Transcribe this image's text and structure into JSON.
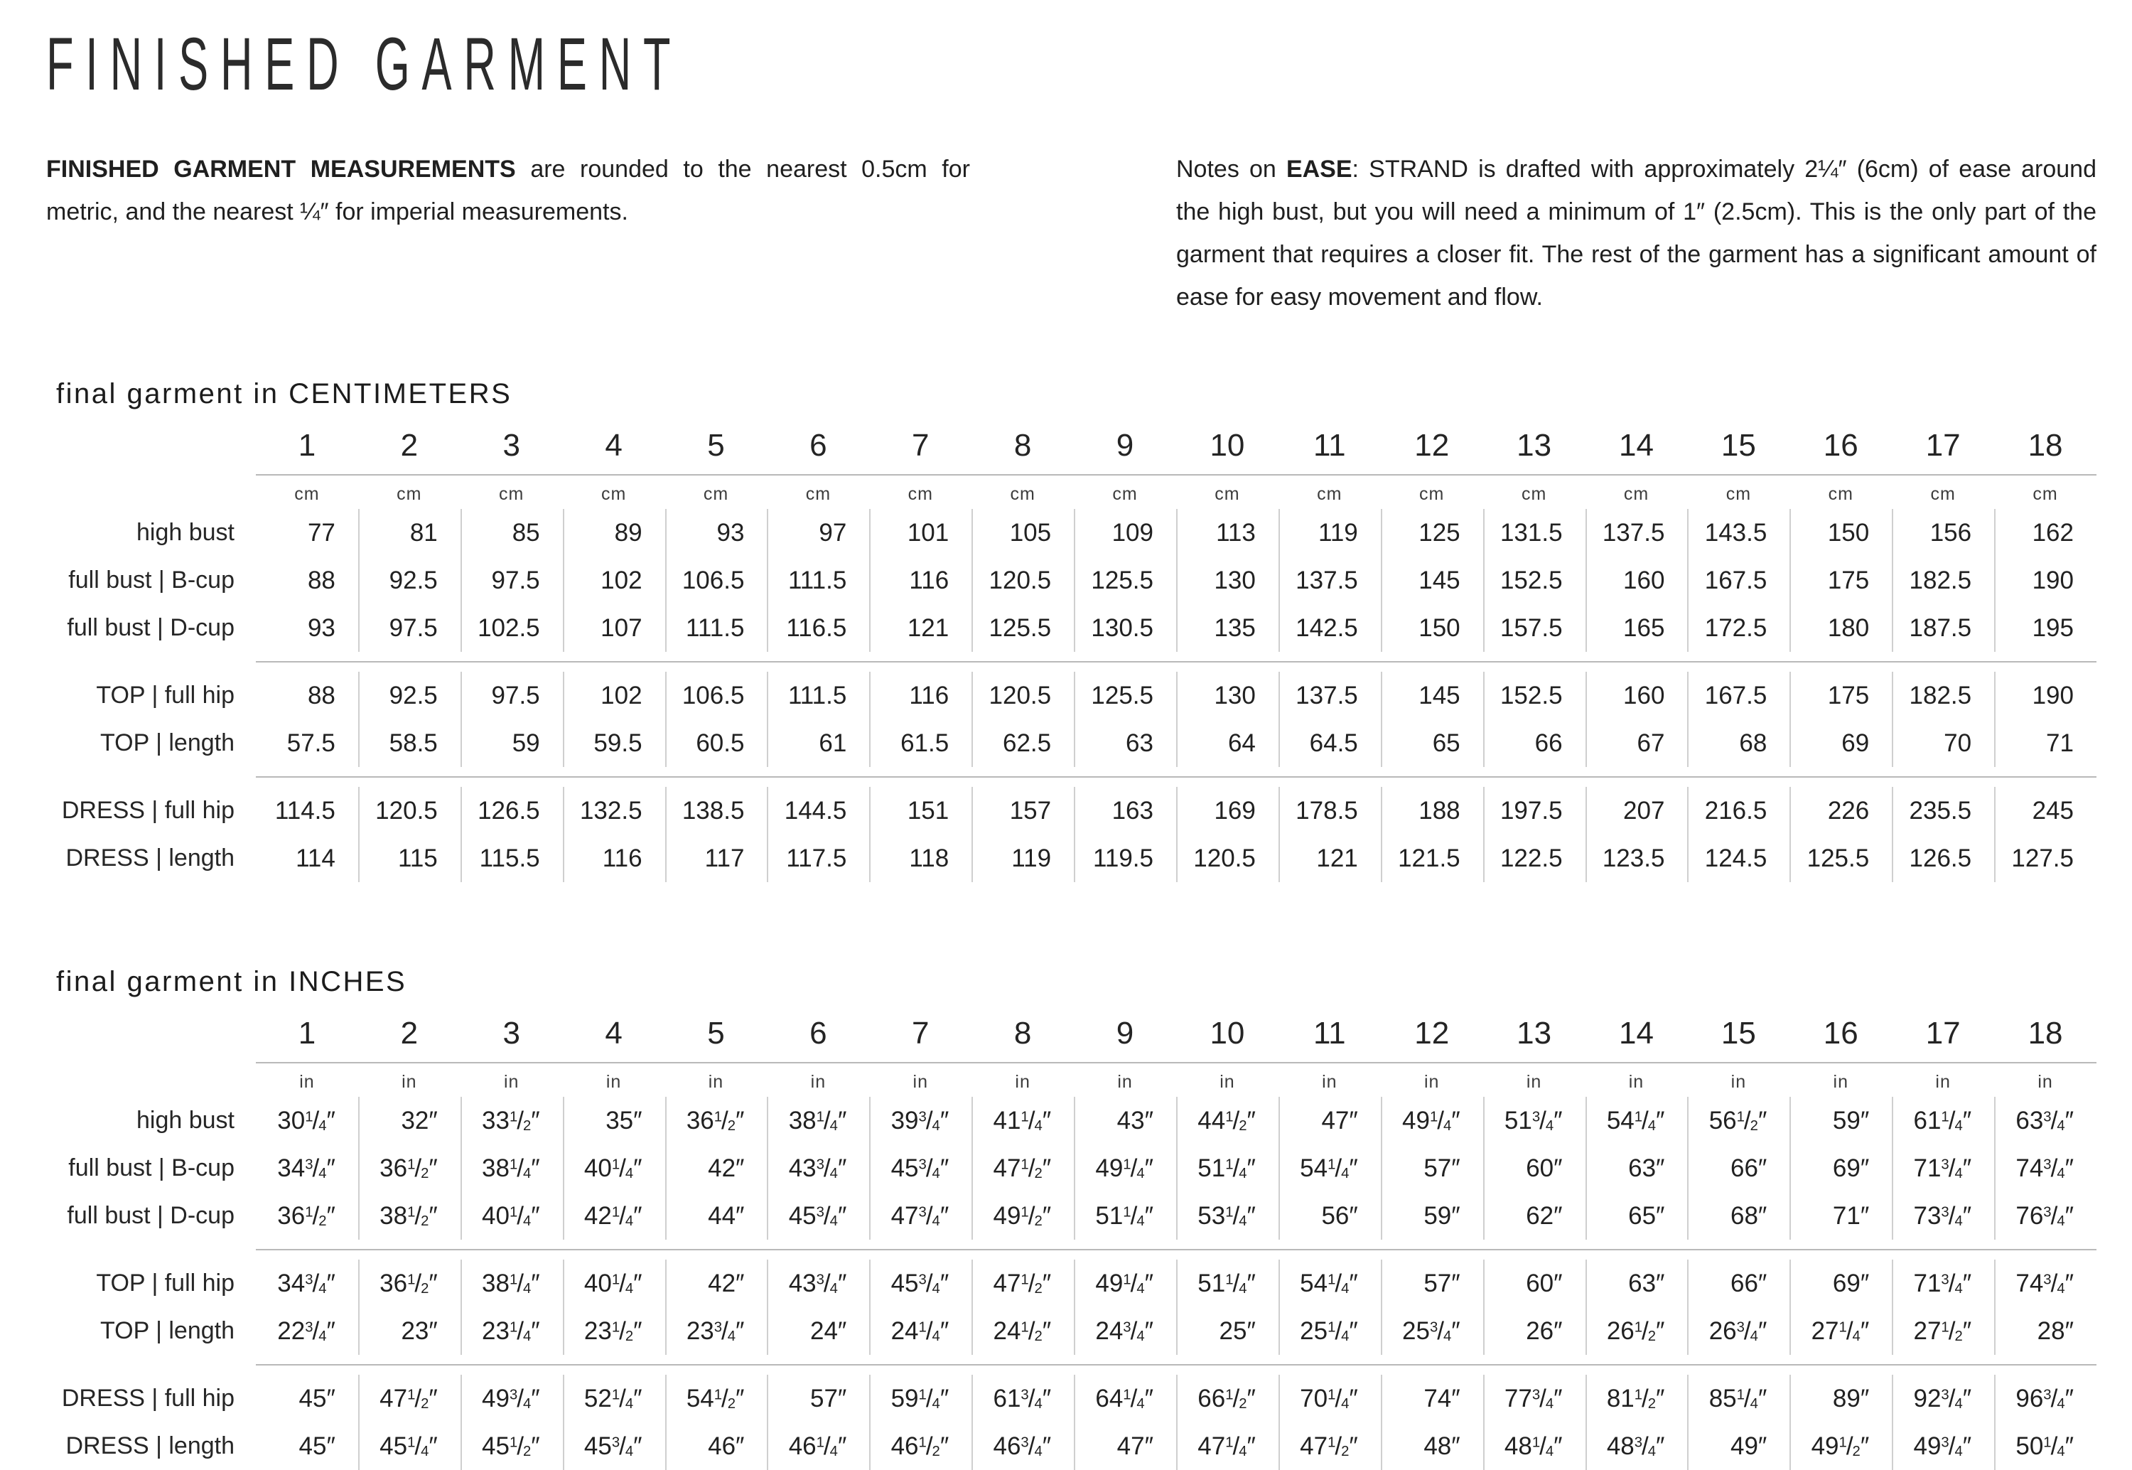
{
  "page": {
    "title": "FINISHED GARMENT",
    "intro_left": {
      "bold": "FINISHED GARMENT MEASUREMENTS",
      "rest": " are rounded to the nearest 0.5cm for metric, and the nearest ¼″ for imperial measurements."
    },
    "intro_right": {
      "prefix": "Notes on ",
      "bold": "EASE",
      "rest": ": STRAND is drafted with approximately 2¼″ (6cm) of ease around the high bust, but you will need a minimum of 1″ (2.5cm). This is the only part of the garment that requires a closer fit. The rest of the garment has a significant amount of ease for easy movement and flow."
    }
  },
  "sizes": [
    "1",
    "2",
    "3",
    "4",
    "5",
    "6",
    "7",
    "8",
    "9",
    "10",
    "11",
    "12",
    "13",
    "14",
    "15",
    "16",
    "17",
    "18"
  ],
  "tables": [
    {
      "id": "cm",
      "section_title": "final garment in CENTIMETERS",
      "unit": "cm",
      "groups": [
        {
          "rows": [
            {
              "label": "high bust",
              "values": [
                "77",
                "81",
                "85",
                "89",
                "93",
                "97",
                "101",
                "105",
                "109",
                "113",
                "119",
                "125",
                "131.5",
                "137.5",
                "143.5",
                "150",
                "156",
                "162"
              ]
            },
            {
              "label": "full bust | B-cup",
              "values": [
                "88",
                "92.5",
                "97.5",
                "102",
                "106.5",
                "111.5",
                "116",
                "120.5",
                "125.5",
                "130",
                "137.5",
                "145",
                "152.5",
                "160",
                "167.5",
                "175",
                "182.5",
                "190"
              ]
            },
            {
              "label": "full bust | D-cup",
              "values": [
                "93",
                "97.5",
                "102.5",
                "107",
                "111.5",
                "116.5",
                "121",
                "125.5",
                "130.5",
                "135",
                "142.5",
                "150",
                "157.5",
                "165",
                "172.5",
                "180",
                "187.5",
                "195"
              ]
            }
          ]
        },
        {
          "rows": [
            {
              "label": "TOP | full hip",
              "values": [
                "88",
                "92.5",
                "97.5",
                "102",
                "106.5",
                "111.5",
                "116",
                "120.5",
                "125.5",
                "130",
                "137.5",
                "145",
                "152.5",
                "160",
                "167.5",
                "175",
                "182.5",
                "190"
              ]
            },
            {
              "label": "TOP | length",
              "values": [
                "57.5",
                "58.5",
                "59",
                "59.5",
                "60.5",
                "61",
                "61.5",
                "62.5",
                "63",
                "64",
                "64.5",
                "65",
                "66",
                "67",
                "68",
                "69",
                "70",
                "71"
              ]
            }
          ]
        },
        {
          "rows": [
            {
              "label": "DRESS | full hip",
              "values": [
                "114.5",
                "120.5",
                "126.5",
                "132.5",
                "138.5",
                "144.5",
                "151",
                "157",
                "163",
                "169",
                "178.5",
                "188",
                "197.5",
                "207",
                "216.5",
                "226",
                "235.5",
                "245"
              ]
            },
            {
              "label": "DRESS | length",
              "values": [
                "114",
                "115",
                "115.5",
                "116",
                "117",
                "117.5",
                "118",
                "119",
                "119.5",
                "120.5",
                "121",
                "121.5",
                "122.5",
                "123.5",
                "124.5",
                "125.5",
                "126.5",
                "127.5"
              ]
            }
          ]
        }
      ]
    },
    {
      "id": "in",
      "section_title": "final garment in INCHES",
      "unit": "in",
      "groups": [
        {
          "rows": [
            {
              "label": "high bust",
              "values": [
                "30¼″",
                "32″",
                "33½″",
                "35″",
                "36½″",
                "38¼″",
                "39¾″",
                "41¼″",
                "43″",
                "44½″",
                "47″",
                "49¼″",
                "51¾″",
                "54¼″",
                "56½″",
                "59″",
                "61¼″",
                "63¾″"
              ]
            },
            {
              "label": "full bust | B-cup",
              "values": [
                "34¾″",
                "36½″",
                "38¼″",
                "40¼″",
                "42″",
                "43¾″",
                "45¾″",
                "47½″",
                "49¼″",
                "51¼″",
                "54¼″",
                "57″",
                "60″",
                "63″",
                "66″",
                "69″",
                "71¾″",
                "74¾″"
              ]
            },
            {
              "label": "full bust | D-cup",
              "values": [
                "36½″",
                "38½″",
                "40¼″",
                "42¼″",
                "44″",
                "45¾″",
                "47¾″",
                "49½″",
                "51¼″",
                "53¼″",
                "56″",
                "59″",
                "62″",
                "65″",
                "68″",
                "71″",
                "73¾″",
                "76¾″"
              ]
            }
          ]
        },
        {
          "rows": [
            {
              "label": "TOP | full hip",
              "values": [
                "34¾″",
                "36½″",
                "38¼″",
                "40¼″",
                "42″",
                "43¾″",
                "45¾″",
                "47½″",
                "49¼″",
                "51¼″",
                "54¼″",
                "57″",
                "60″",
                "63″",
                "66″",
                "69″",
                "71¾″",
                "74¾″"
              ]
            },
            {
              "label": "TOP | length",
              "values": [
                "22¾″",
                "23″",
                "23¼″",
                "23½″",
                "23¾″",
                "24″",
                "24¼″",
                "24½″",
                "24¾″",
                "25″",
                "25¼″",
                "25¾″",
                "26″",
                "26½″",
                "26¾″",
                "27¼″",
                "27½″",
                "28″"
              ]
            }
          ]
        },
        {
          "rows": [
            {
              "label": "DRESS | full hip",
              "values": [
                "45″",
                "47½″",
                "49¾″",
                "52¼″",
                "54½″",
                "57″",
                "59¼″",
                "61¾″",
                "64¼″",
                "66½″",
                "70¼″",
                "74″",
                "77¾″",
                "81½″",
                "85¼″",
                "89″",
                "92¾″",
                "96¾″"
              ]
            },
            {
              "label": "DRESS | length",
              "values": [
                "45″",
                "45¼″",
                "45½″",
                "45¾″",
                "46″",
                "46¼″",
                "46½″",
                "46¾″",
                "47″",
                "47¼″",
                "47½″",
                "48″",
                "48¼″",
                "48¾″",
                "49″",
                "49½″",
                "49¾″",
                "50¼″"
              ]
            }
          ]
        }
      ]
    }
  ]
}
